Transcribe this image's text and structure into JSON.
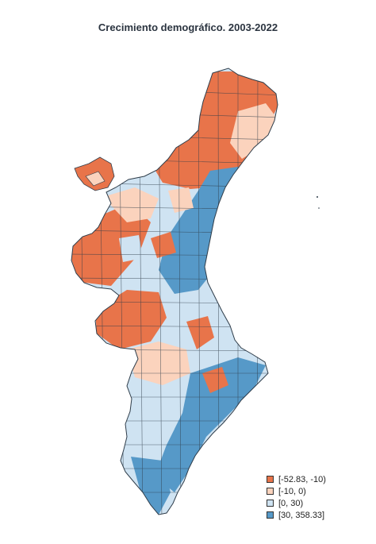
{
  "title": "Crecimiento demográfico. 2003-2022",
  "colors": {
    "outline": "#2f3d4a",
    "class1": "#e8744a",
    "class2": "#fbd3bd",
    "class3": "#cfe3f2",
    "class4": "#5699c8"
  },
  "legend": [
    {
      "label": "[-52.83, -10)",
      "color": "#e8744a"
    },
    {
      "label": "[-10, 0)",
      "color": "#fbd3bd"
    },
    {
      "label": "[0, 30)",
      "color": "#cfe3f2"
    },
    {
      "label": "[30, 358.33]",
      "color": "#5699c8"
    }
  ]
}
